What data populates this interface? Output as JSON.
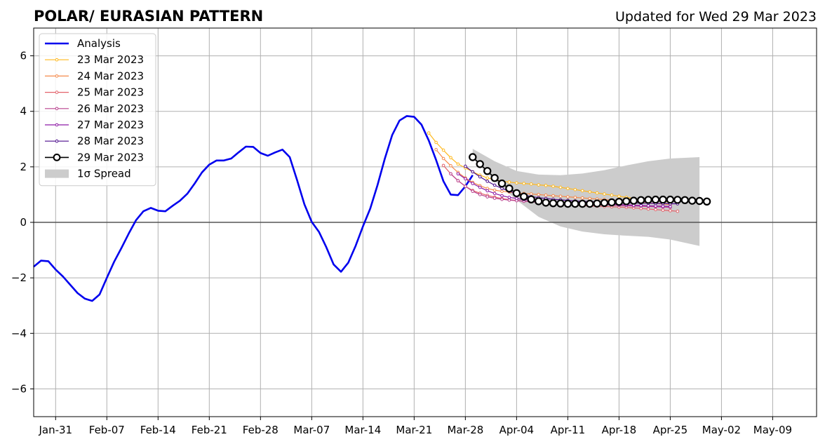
{
  "chart_data": {
    "type": "line",
    "title": "POLAR/ EURASIAN  PATTERN",
    "subtitle": "Updated for Wed 29 Mar 2023",
    "xlabel": "",
    "ylabel": "",
    "x_axis": {
      "type": "date",
      "min": "2023-01-28",
      "max": "2023-05-15",
      "ticks": [
        {
          "date": "2023-01-31",
          "label": "Jan-31"
        },
        {
          "date": "2023-02-07",
          "label": "Feb-07"
        },
        {
          "date": "2023-02-14",
          "label": "Feb-14"
        },
        {
          "date": "2023-02-21",
          "label": "Feb-21"
        },
        {
          "date": "2023-02-28",
          "label": "Feb-28"
        },
        {
          "date": "2023-03-07",
          "label": "Mar-07"
        },
        {
          "date": "2023-03-14",
          "label": "Mar-14"
        },
        {
          "date": "2023-03-21",
          "label": "Mar-21"
        },
        {
          "date": "2023-03-28",
          "label": "Mar-28"
        },
        {
          "date": "2023-04-04",
          "label": "Apr-04"
        },
        {
          "date": "2023-04-11",
          "label": "Apr-11"
        },
        {
          "date": "2023-04-18",
          "label": "Apr-18"
        },
        {
          "date": "2023-04-25",
          "label": "Apr-25"
        },
        {
          "date": "2023-05-02",
          "label": "May-02"
        },
        {
          "date": "2023-05-09",
          "label": "May-09"
        }
      ]
    },
    "y_axis": {
      "min": -7,
      "max": 7,
      "ticks": [
        -6,
        -4,
        -2,
        0,
        2,
        4,
        6
      ],
      "tick_labels": [
        "−6",
        "−4",
        "−2",
        "0",
        "2",
        "4",
        "6"
      ]
    },
    "grid": true,
    "zero_line": true,
    "legend_position": "top-left",
    "analysis": {
      "name": "Analysis",
      "color": "#0000ee",
      "start": "2023-01-28",
      "values": [
        -1.6,
        -1.38,
        -1.4,
        -1.7,
        -1.95,
        -2.25,
        -2.55,
        -2.75,
        -2.83,
        -2.6,
        -2.0,
        -1.42,
        -0.92,
        -0.4,
        0.08,
        0.4,
        0.52,
        0.42,
        0.4,
        0.6,
        0.78,
        1.03,
        1.4,
        1.8,
        2.08,
        2.23,
        2.23,
        2.3,
        2.52,
        2.73,
        2.72,
        2.5,
        2.4,
        2.52,
        2.62,
        2.35,
        1.52,
        0.65,
        0.02,
        -0.35,
        -0.9,
        -1.52,
        -1.78,
        -1.45,
        -0.85,
        -0.15,
        0.5,
        1.35,
        2.3,
        3.15,
        3.67,
        3.83,
        3.8,
        3.52,
        2.95,
        2.25,
        1.48,
        1.0,
        0.98,
        1.3,
        1.7
      ]
    },
    "forecasts": [
      {
        "name": "23 Mar 2023",
        "color": "#ffb81c",
        "start": "2023-03-23",
        "values": [
          3.22,
          2.88,
          2.6,
          2.33,
          2.1,
          1.96,
          1.82,
          1.7,
          1.6,
          1.54,
          1.48,
          1.45,
          1.42,
          1.4,
          1.38,
          1.35,
          1.33,
          1.3,
          1.26,
          1.22,
          1.18,
          1.14,
          1.1,
          1.06,
          1.02,
          0.98,
          0.94,
          0.9,
          0.86,
          0.82,
          0.79,
          0.77,
          0.75,
          0.73
        ]
      },
      {
        "name": "24 Mar 2023",
        "color": "#f58a4b",
        "start": "2023-03-24",
        "values": [
          2.62,
          2.3,
          2.04,
          1.8,
          1.6,
          1.44,
          1.32,
          1.22,
          1.16,
          1.12,
          1.09,
          1.06,
          1.04,
          1.02,
          1.0,
          0.98,
          0.96,
          0.94,
          0.92,
          0.9,
          0.88,
          0.86,
          0.84,
          0.82,
          0.8,
          0.78,
          0.76,
          0.74,
          0.72,
          0.7,
          0.68,
          0.66,
          0.64
        ]
      },
      {
        "name": "25 Mar 2023",
        "color": "#e3626a",
        "start": "2023-03-25",
        "values": [
          2.05,
          1.75,
          1.5,
          1.3,
          1.15,
          1.05,
          0.97,
          0.91,
          0.86,
          0.82,
          0.79,
          0.76,
          0.74,
          0.72,
          0.7,
          0.68,
          0.66,
          0.64,
          0.62,
          0.6,
          0.59,
          0.58,
          0.57,
          0.56,
          0.55,
          0.54,
          0.52,
          0.5,
          0.48,
          0.46,
          0.44,
          0.42,
          0.4
        ]
      },
      {
        "name": "26 Mar 2023",
        "color": "#b8408e",
        "start": "2023-03-26",
        "values": [
          1.75,
          1.5,
          1.3,
          1.12,
          1.0,
          0.92,
          0.87,
          0.83,
          0.8,
          0.78,
          0.76,
          0.74,
          0.72,
          0.71,
          0.7,
          0.69,
          0.68,
          0.67,
          0.66,
          0.65,
          0.64,
          0.63,
          0.62,
          0.61,
          0.6,
          0.59,
          0.58,
          0.57,
          0.56,
          0.55,
          0.54
        ]
      },
      {
        "name": "27 Mar 2023",
        "color": "#8e1ba6",
        "start": "2023-03-27",
        "values": [
          1.75,
          1.57,
          1.4,
          1.26,
          1.14,
          1.04,
          0.96,
          0.9,
          0.86,
          0.82,
          0.79,
          0.77,
          0.75,
          0.73,
          0.72,
          0.71,
          0.7,
          0.69,
          0.68,
          0.67,
          0.66,
          0.65,
          0.64,
          0.63,
          0.62,
          0.61,
          0.6,
          0.59,
          0.58,
          0.57
        ]
      },
      {
        "name": "28 Mar 2023",
        "color": "#4b0c8c",
        "start": "2023-03-28",
        "values": [
          2.02,
          1.82,
          1.64,
          1.48,
          1.34,
          1.22,
          1.12,
          1.04,
          0.98,
          0.93,
          0.89,
          0.86,
          0.83,
          0.81,
          0.79,
          0.77,
          0.76,
          0.75,
          0.74,
          0.73,
          0.72,
          0.71,
          0.7,
          0.7,
          0.69,
          0.69,
          0.68,
          0.68,
          0.67,
          0.67
        ]
      },
      {
        "name": "29 Mar 2023",
        "color": "#000000",
        "start": "2023-03-29",
        "values": [
          2.35,
          2.1,
          1.85,
          1.6,
          1.4,
          1.22,
          1.05,
          0.93,
          0.83,
          0.76,
          0.71,
          0.69,
          0.68,
          0.67,
          0.67,
          0.67,
          0.67,
          0.68,
          0.7,
          0.72,
          0.74,
          0.76,
          0.78,
          0.8,
          0.81,
          0.82,
          0.82,
          0.82,
          0.81,
          0.8,
          0.78,
          0.77,
          0.75
        ]
      }
    ],
    "spread": {
      "name": "1σ Spread",
      "color": "#cccccc",
      "points": [
        {
          "date": "2023-03-29",
          "upper": 2.65,
          "lower": 2.3
        },
        {
          "date": "2023-04-01",
          "upper": 2.2,
          "lower": 1.5
        },
        {
          "date": "2023-04-04",
          "upper": 1.85,
          "lower": 0.8
        },
        {
          "date": "2023-04-07",
          "upper": 1.72,
          "lower": 0.2
        },
        {
          "date": "2023-04-10",
          "upper": 1.7,
          "lower": -0.15
        },
        {
          "date": "2023-04-13",
          "upper": 1.76,
          "lower": -0.33
        },
        {
          "date": "2023-04-16",
          "upper": 1.88,
          "lower": -0.43
        },
        {
          "date": "2023-04-19",
          "upper": 2.05,
          "lower": -0.48
        },
        {
          "date": "2023-04-22",
          "upper": 2.2,
          "lower": -0.52
        },
        {
          "date": "2023-04-25",
          "upper": 2.3,
          "lower": -0.62
        },
        {
          "date": "2023-04-29",
          "upper": 2.35,
          "lower": -0.85
        }
      ]
    }
  }
}
